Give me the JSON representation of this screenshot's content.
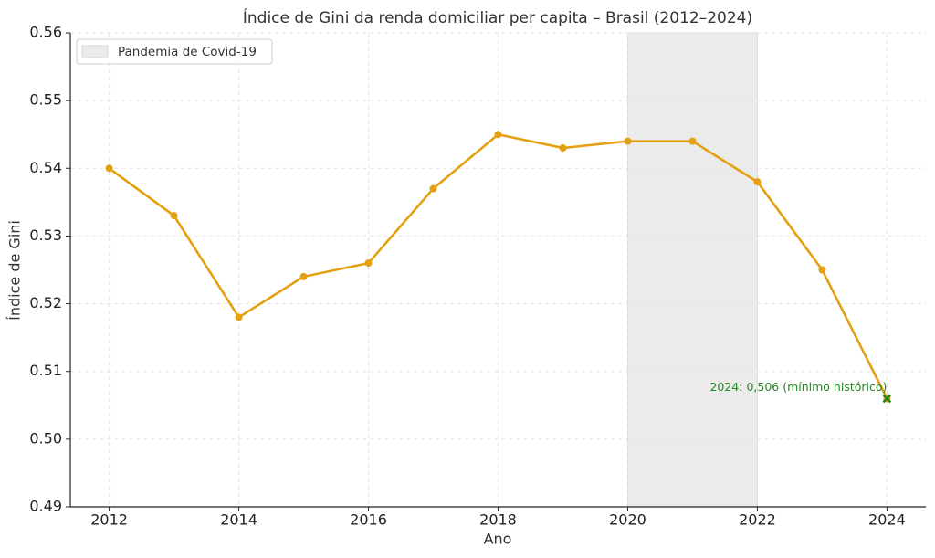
{
  "chart_data": {
    "type": "line",
    "title": "Índice de Gini da renda domiciliar per capita – Brasil (2012–2024)",
    "x_label": "Ano",
    "y_label": "Índice de Gini",
    "x": [
      2012,
      2013,
      2014,
      2015,
      2016,
      2017,
      2018,
      2019,
      2020,
      2021,
      2022,
      2023,
      2024
    ],
    "values": [
      0.54,
      0.533,
      0.518,
      0.524,
      0.526,
      0.537,
      0.545,
      0.543,
      0.544,
      0.544,
      0.538,
      0.525,
      0.506
    ],
    "color": "#e3a010",
    "xlim": [
      2011.4,
      2024.6
    ],
    "xticks": [
      2012,
      2014,
      2016,
      2018,
      2020,
      2022,
      2024
    ],
    "ylim": [
      0.49,
      0.56
    ],
    "yticks": [
      0.49,
      {
        "value": 0.5,
        "label": "0.50"
      },
      0.51,
      0.52,
      0.53,
      0.54,
      0.55,
      0.56
    ],
    "grid": true,
    "legend_position": "upper left",
    "shaded_span": {
      "from": 2020,
      "to": 2022,
      "label": "Pandemia de Covid-19",
      "color": "#ebebeb"
    },
    "annotation": {
      "text": "2024: 0,506 (mínimo histórico)",
      "x": 2024,
      "y": 0.506,
      "color": "#1f8a1f"
    }
  }
}
